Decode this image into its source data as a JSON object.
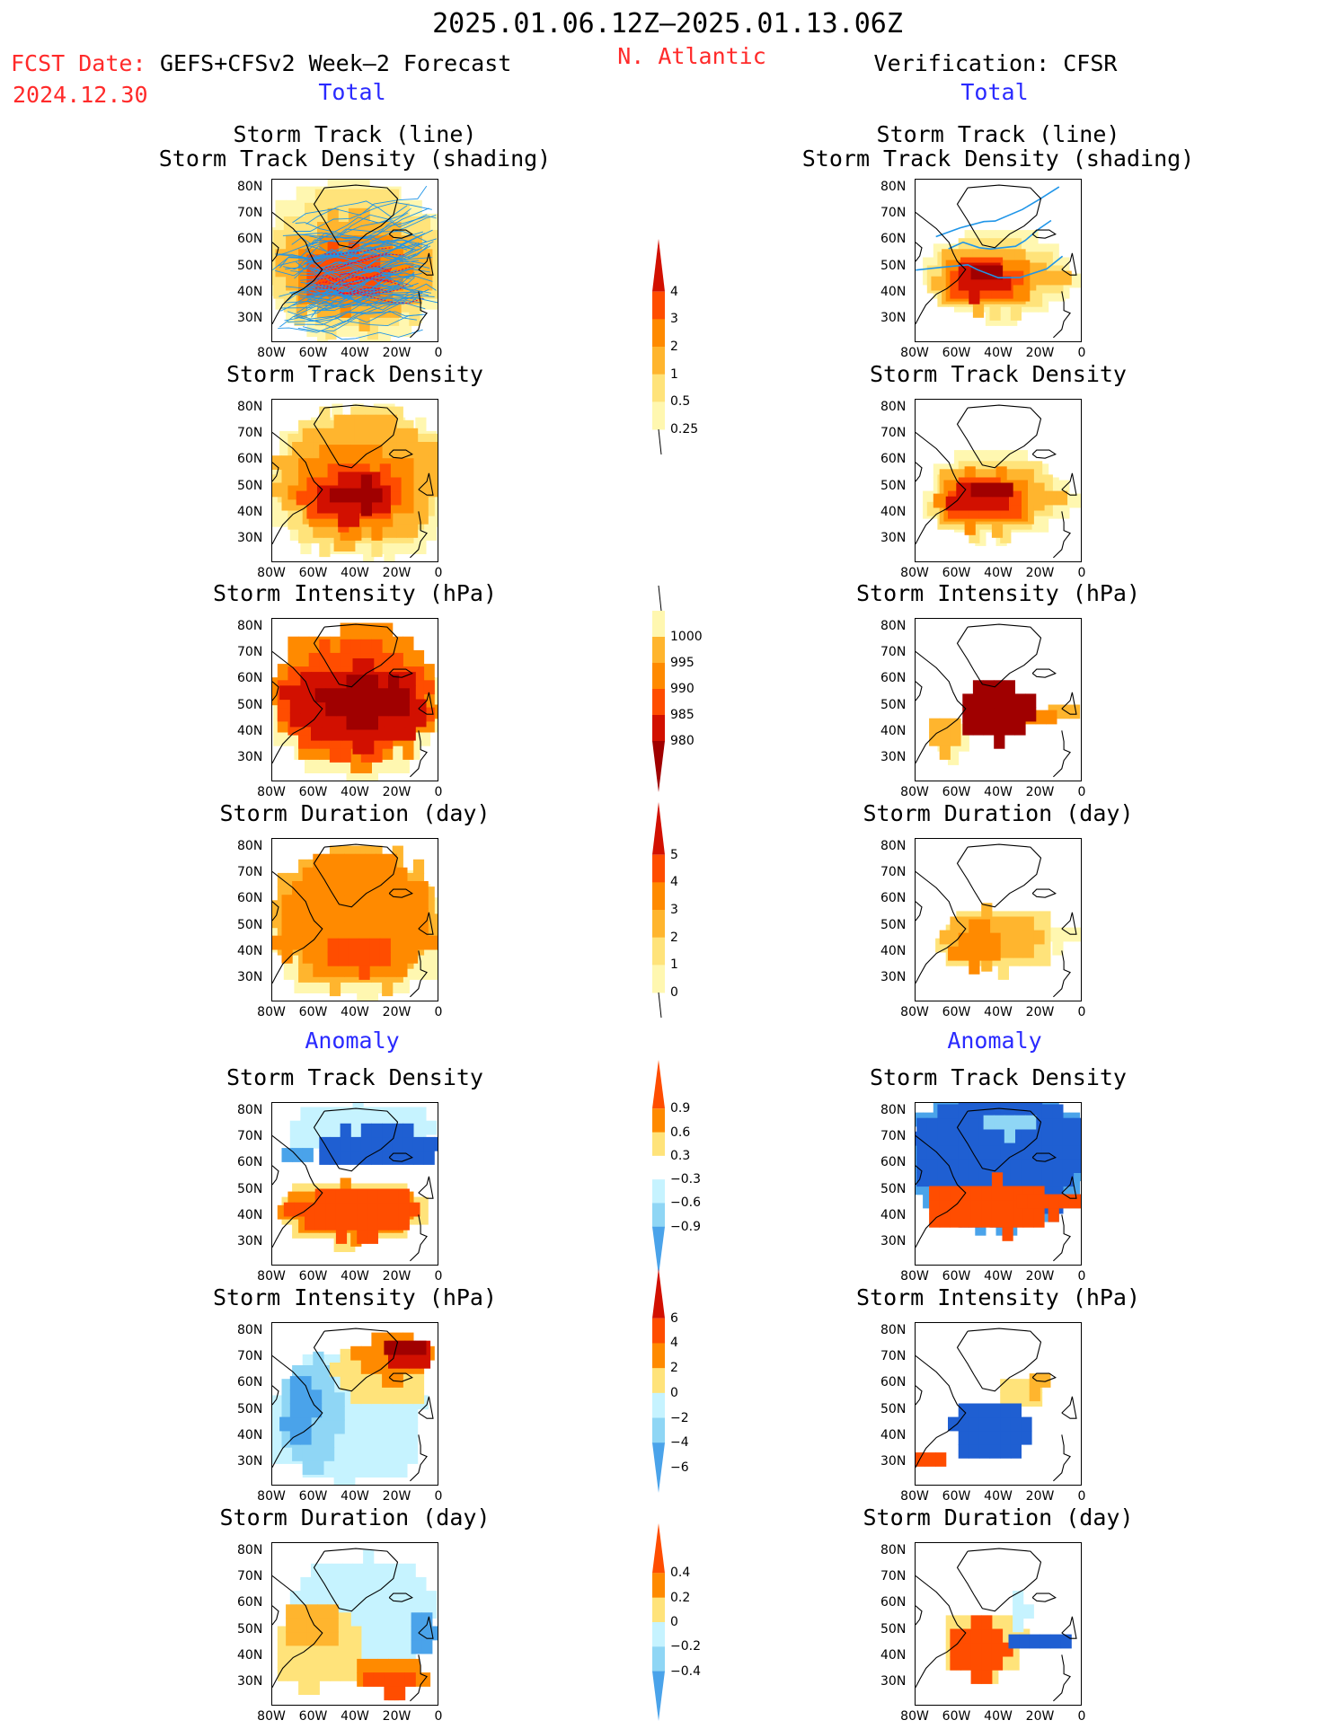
{
  "header": {
    "title": "2025.01.06.12Z–2025.01.13.06Z",
    "fcst_label": "FCST Date:",
    "fcst_model": "GEFS+CFSv2 Week–2 Forecast",
    "fcst_date": "2024.12.30",
    "region": "N. Atlantic",
    "verification": "Verification: CFSR"
  },
  "sections": {
    "total": "Total",
    "anomaly": "Anomaly"
  },
  "panel_titles": {
    "track_line": "Storm Track (line)",
    "track_shading": "Storm Track Density (shading)",
    "density": "Storm Track Density",
    "intensity": "Storm Intensity (hPa)",
    "duration": "Storm Duration (day)"
  },
  "axes": {
    "y_ticks": [
      "80N",
      "70N",
      "60N",
      "50N",
      "40N",
      "30N"
    ],
    "x_ticks": [
      "80W",
      "60W",
      "40W",
      "20W",
      "0"
    ]
  },
  "colors": {
    "y1": "#fff7b0",
    "y2": "#ffe37a",
    "o1": "#ffb52e",
    "o2": "#ff8a00",
    "r1": "#ff4d00",
    "r2": "#d21000",
    "r3": "#a00000",
    "b1": "#c6f3ff",
    "b2": "#8fd6f5",
    "b3": "#4aa3ea",
    "b4": "#1f5fd2",
    "track_line": "#1f95e8",
    "track_red": "#e0004a"
  },
  "chart_data": [
    {
      "type": "heatmap",
      "id": "ltrack",
      "title": "Storm Track (line) / Storm Track Density (shading)",
      "column": "GEFS+CFSv2 Week-2 Forecast",
      "section": "Total"
    },
    {
      "type": "heatmap",
      "id": "ldens",
      "title": "Storm Track Density",
      "column": "GEFS+CFSv2 Week-2 Forecast",
      "section": "Total"
    },
    {
      "type": "heatmap",
      "id": "lint",
      "title": "Storm Intensity (hPa)",
      "column": "GEFS+CFSv2 Week-2 Forecast",
      "section": "Total"
    },
    {
      "type": "heatmap",
      "id": "ldur",
      "title": "Storm Duration (day)",
      "column": "GEFS+CFSv2 Week-2 Forecast",
      "section": "Total"
    },
    {
      "type": "heatmap",
      "id": "ladens",
      "title": "Storm Track Density",
      "column": "GEFS+CFSv2 Week-2 Forecast",
      "section": "Anomaly"
    },
    {
      "type": "heatmap",
      "id": "laint",
      "title": "Storm Intensity (hPa)",
      "column": "GEFS+CFSv2 Week-2 Forecast",
      "section": "Anomaly"
    },
    {
      "type": "heatmap",
      "id": "ladur",
      "title": "Storm Duration (day)",
      "column": "GEFS+CFSv2 Week-2 Forecast",
      "section": "Anomaly"
    },
    {
      "type": "heatmap",
      "id": "rtrack",
      "title": "Storm Track (line) / Storm Track Density (shading)",
      "column": "CFSR",
      "section": "Total"
    },
    {
      "type": "heatmap",
      "id": "rdens",
      "title": "Storm Track Density",
      "column": "CFSR",
      "section": "Total"
    },
    {
      "type": "heatmap",
      "id": "rint",
      "title": "Storm Intensity (hPa)",
      "column": "CFSR",
      "section": "Total"
    },
    {
      "type": "heatmap",
      "id": "rdur",
      "title": "Storm Duration (day)",
      "column": "CFSR",
      "section": "Total"
    },
    {
      "type": "heatmap",
      "id": "radens",
      "title": "Storm Track Density",
      "column": "CFSR",
      "section": "Anomaly"
    },
    {
      "type": "heatmap",
      "id": "raint",
      "title": "Storm Intensity (hPa)",
      "column": "CFSR",
      "section": "Anomaly"
    },
    {
      "type": "heatmap",
      "id": "radur",
      "title": "Storm Duration (day)",
      "column": "CFSR",
      "section": "Anomaly"
    }
  ],
  "colorbars": [
    {
      "id": "cb_density",
      "labels": [
        "4",
        "3",
        "2",
        "1",
        "0.5",
        "0.25"
      ],
      "colors": [
        "#d21000",
        "#ff4d00",
        "#ff8a00",
        "#ffb52e",
        "#ffe37a",
        "#fff7b0"
      ],
      "arrow": "top",
      "tail": "bottom"
    },
    {
      "id": "cb_intensity",
      "labels": [
        "1000",
        "995",
        "990",
        "985",
        "980"
      ],
      "colors": [
        "#fff7b0",
        "#ffb52e",
        "#ff8a00",
        "#ff4d00",
        "#d21000",
        "#a00000"
      ],
      "arrow": "bottom",
      "tail": "top"
    },
    {
      "id": "cb_duration",
      "labels": [
        "5",
        "4",
        "3",
        "2",
        "1",
        "0"
      ],
      "colors": [
        "#d21000",
        "#ff4d00",
        "#ff8a00",
        "#ffb52e",
        "#ffe37a",
        "#fff7b0"
      ],
      "arrow": "top",
      "tail": "bottom"
    },
    {
      "id": "cb_adensity",
      "labels": [
        "0.9",
        "0.6",
        "0.3",
        "−0.3",
        "−0.6",
        "−0.9"
      ],
      "colors": [
        "#ff4d00",
        "#ff8a00",
        "#ffe37a",
        "#ffffff",
        "#c6f3ff",
        "#8fd6f5",
        "#4aa3ea"
      ],
      "arrow": "both"
    },
    {
      "id": "cb_aintensity",
      "labels": [
        "6",
        "4",
        "2",
        "0",
        "−2",
        "−4",
        "−6"
      ],
      "colors": [
        "#d21000",
        "#ff4d00",
        "#ff8a00",
        "#ffe37a",
        "#c6f3ff",
        "#8fd6f5",
        "#4aa3ea"
      ],
      "arrow": "both"
    },
    {
      "id": "cb_aduration",
      "labels": [
        "0.4",
        "0.2",
        "0",
        "−0.2",
        "−0.4"
      ],
      "colors": [
        "#ff4d00",
        "#ff8a00",
        "#ffe37a",
        "#c6f3ff",
        "#8fd6f5",
        "#4aa3ea"
      ],
      "arrow": "both"
    }
  ]
}
